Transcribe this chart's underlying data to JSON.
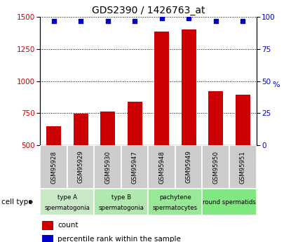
{
  "title": "GDS2390 / 1426763_at",
  "samples": [
    "GSM95928",
    "GSM95929",
    "GSM95930",
    "GSM95947",
    "GSM95948",
    "GSM95949",
    "GSM95950",
    "GSM95951"
  ],
  "counts": [
    650,
    748,
    762,
    840,
    1385,
    1400,
    922,
    895
  ],
  "percentiles": [
    97,
    97,
    97,
    97,
    99,
    99,
    97,
    97
  ],
  "cell_types": [
    {
      "label_top": "type A",
      "label_bot": "spermatogonia",
      "span": [
        0,
        2
      ]
    },
    {
      "label_top": "type B",
      "label_bot": "spermatogonia",
      "span": [
        2,
        4
      ]
    },
    {
      "label_top": "pachytene",
      "label_bot": "spermatocytes",
      "span": [
        4,
        6
      ]
    },
    {
      "label_top": "round spermatids",
      "label_bot": "",
      "span": [
        6,
        8
      ]
    }
  ],
  "ct_colors": [
    "#c8e8c8",
    "#b0e8b0",
    "#98e898",
    "#80e880"
  ],
  "bar_color": "#cc0000",
  "dot_color": "#0000cc",
  "ylim_left": [
    500,
    1500
  ],
  "ylim_right": [
    0,
    100
  ],
  "yticks_left": [
    500,
    750,
    1000,
    1250,
    1500
  ],
  "yticks_right": [
    0,
    25,
    50,
    75,
    100
  ],
  "left_tick_color": "#cc0000",
  "right_tick_color": "#0000cc",
  "grid_color": "#000000",
  "sample_box_color": "#cccccc",
  "legend_count_color": "#cc0000",
  "legend_pct_color": "#0000cc"
}
